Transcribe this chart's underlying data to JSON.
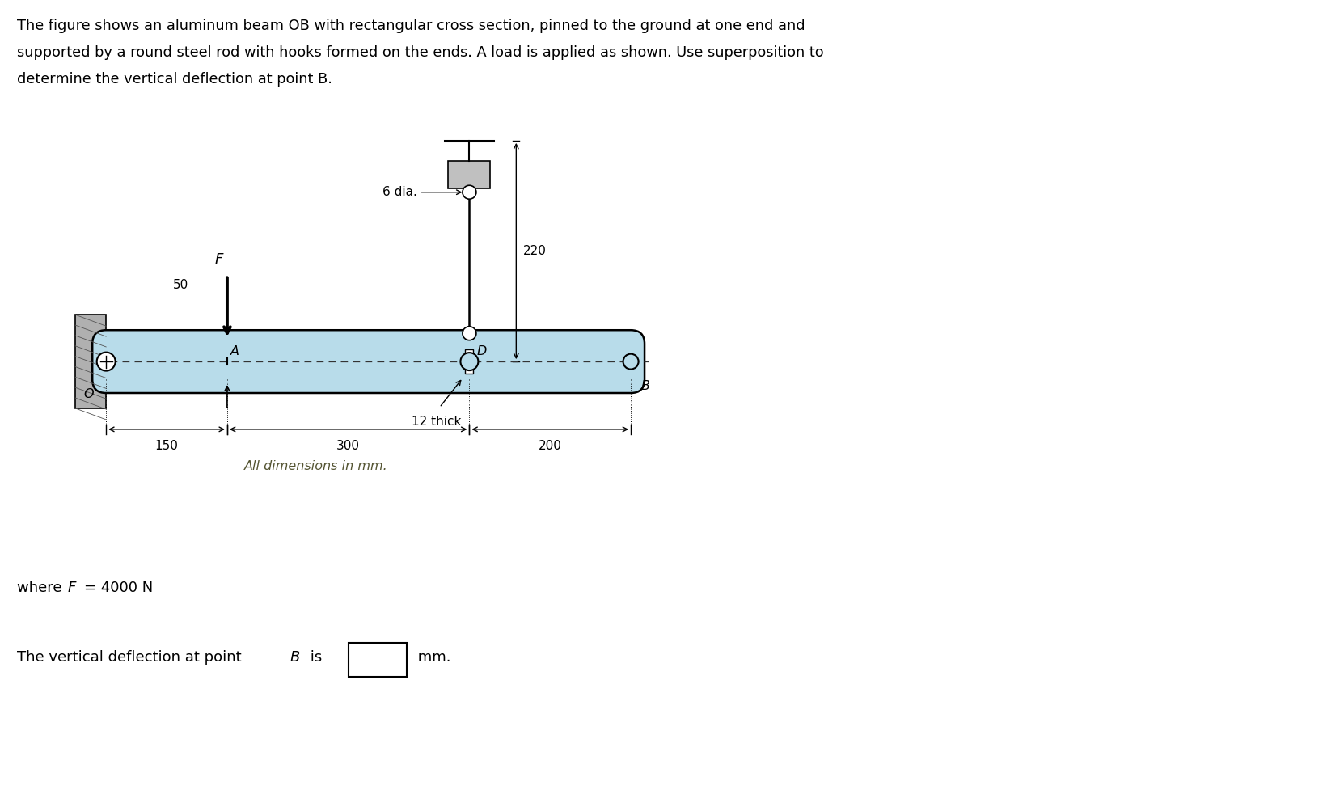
{
  "bg_color": "#ffffff",
  "beam_color": "#b8dcea",
  "beam_outline_color": "#000000",
  "wall_color": "#b0b0b0",
  "text_color": "#000000",
  "dim_note": "All dimensions in mm.",
  "title_line1": "The figure shows an aluminum beam OB with rectangular cross section, pinned to the ground at one end and",
  "title_line2": "supported by a round steel rod with hooks formed on the ends. A load is applied as shown. Use superposition to",
  "title_line3": "determine the vertical deflection at point B.",
  "where_line": "where F = 4000 N",
  "answer_line": "The vertical deflection at point B is",
  "units": "mm."
}
